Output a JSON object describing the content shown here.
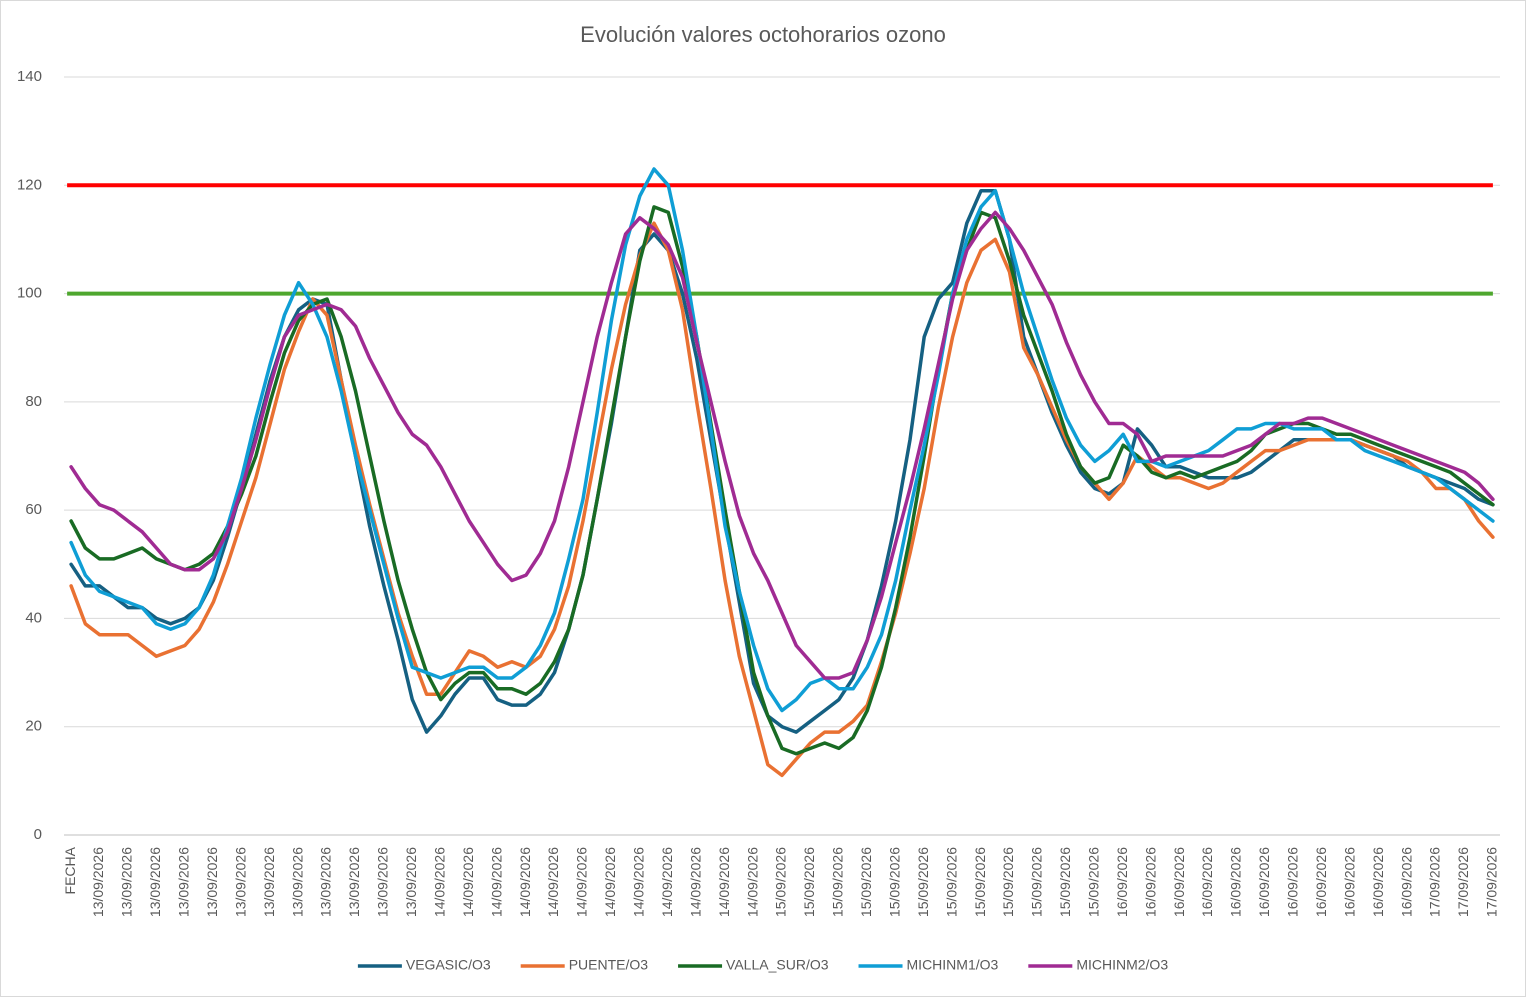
{
  "chart_data": {
    "type": "line",
    "title": "Evolución valores octohorarios ozono",
    "categories": [
      "FECHA",
      null,
      "13/09/2026",
      null,
      "13/09/2026",
      null,
      "13/09/2026",
      null,
      "13/09/2026",
      null,
      "13/09/2026",
      null,
      "13/09/2026",
      null,
      "13/09/2026",
      null,
      "13/09/2026",
      null,
      "13/09/2026",
      null,
      "13/09/2026",
      null,
      "13/09/2026",
      null,
      "13/09/2026",
      null,
      "14/09/2026",
      null,
      "14/09/2026",
      null,
      "14/09/2026",
      null,
      "14/09/2026",
      null,
      "14/09/2026",
      null,
      "14/09/2026",
      null,
      "14/09/2026",
      null,
      "14/09/2026",
      null,
      "14/09/2026",
      null,
      "14/09/2026",
      null,
      "14/09/2026",
      null,
      "14/09/2026",
      null,
      "15/09/2026",
      null,
      "15/09/2026",
      null,
      "15/09/2026",
      null,
      "15/09/2026",
      null,
      "15/09/2026",
      null,
      "15/09/2026",
      null,
      "15/09/2026",
      null,
      "15/09/2026",
      null,
      "15/09/2026",
      null,
      "15/09/2026",
      null,
      "15/09/2026",
      null,
      "15/09/2026",
      null,
      "16/09/2026",
      null,
      "16/09/2026",
      null,
      "16/09/2026",
      null,
      "16/09/2026",
      null,
      "16/09/2026",
      null,
      "16/09/2026",
      null,
      "16/09/2026",
      null,
      "16/09/2026",
      null,
      "16/09/2026",
      null,
      "16/09/2026",
      null,
      "16/09/2026",
      null,
      "17/09/2026",
      null,
      "17/09/2026",
      null,
      "17/09/2026"
    ],
    "series": [
      {
        "name": "VEGASIC/O3",
        "color": "#156082",
        "values": [
          50,
          46,
          46,
          44,
          42,
          42,
          40,
          39,
          40,
          42,
          47,
          55,
          64,
          74,
          84,
          92,
          97,
          99,
          98,
          84,
          70,
          57,
          46,
          36,
          25,
          19,
          22,
          26,
          29,
          29,
          25,
          24,
          24,
          26,
          30,
          38,
          48,
          62,
          76,
          92,
          108,
          111,
          108,
          100,
          88,
          73,
          58,
          43,
          28,
          22,
          20,
          19,
          21,
          23,
          25,
          29,
          36,
          46,
          58,
          73,
          92,
          99,
          102,
          113,
          119,
          119,
          110,
          92,
          85,
          78,
          72,
          67,
          64,
          63,
          65,
          75,
          72,
          68,
          68,
          67,
          66,
          66,
          66,
          67,
          69,
          71,
          73,
          73,
          73,
          73,
          73,
          72,
          71,
          70,
          68,
          67,
          66,
          65,
          64,
          62,
          61
        ]
      },
      {
        "name": "PUENTE/O3",
        "color": "#e97132",
        "values": [
          46,
          39,
          37,
          37,
          37,
          35,
          33,
          34,
          35,
          38,
          43,
          50,
          58,
          66,
          76,
          86,
          93,
          99,
          96,
          84,
          72,
          61,
          51,
          41,
          33,
          26,
          26,
          30,
          34,
          33,
          31,
          32,
          31,
          33,
          38,
          46,
          58,
          72,
          86,
          98,
          107,
          113,
          108,
          97,
          80,
          64,
          47,
          33,
          23,
          13,
          11,
          14,
          17,
          19,
          19,
          21,
          24,
          32,
          41,
          52,
          64,
          79,
          92,
          102,
          108,
          110,
          104,
          90,
          85,
          79,
          73,
          68,
          65,
          62,
          65,
          70,
          68,
          66,
          66,
          65,
          64,
          65,
          67,
          69,
          71,
          71,
          72,
          73,
          73,
          73,
          73,
          72,
          71,
          70,
          69,
          67,
          64,
          64,
          62,
          58,
          55
        ]
      },
      {
        "name": "VALLA_SUR/O3",
        "color": "#196b24",
        "values": [
          58,
          53,
          51,
          51,
          52,
          53,
          51,
          50,
          49,
          50,
          52,
          57,
          63,
          70,
          80,
          89,
          95,
          98,
          99,
          92,
          82,
          70,
          58,
          47,
          38,
          30,
          25,
          28,
          30,
          30,
          27,
          27,
          26,
          28,
          32,
          38,
          48,
          62,
          77,
          92,
          106,
          116,
          115,
          105,
          92,
          76,
          60,
          45,
          30,
          22,
          16,
          15,
          16,
          17,
          16,
          18,
          23,
          31,
          42,
          55,
          70,
          86,
          100,
          108,
          115,
          114,
          106,
          96,
          89,
          82,
          74,
          68,
          65,
          66,
          72,
          70,
          67,
          66,
          67,
          66,
          67,
          68,
          69,
          71,
          74,
          75,
          76,
          76,
          75,
          74,
          74,
          73,
          72,
          71,
          70,
          69,
          68,
          67,
          65,
          63,
          61
        ]
      },
      {
        "name": "MICHINM1/O3",
        "color": "#0f9ed5",
        "values": [
          54,
          48,
          45,
          44,
          43,
          42,
          39,
          38,
          39,
          42,
          48,
          57,
          66,
          77,
          87,
          96,
          102,
          98,
          92,
          82,
          70,
          60,
          50,
          40,
          31,
          30,
          29,
          30,
          31,
          31,
          29,
          29,
          31,
          35,
          41,
          51,
          62,
          78,
          95,
          109,
          118,
          123,
          120,
          108,
          92,
          75,
          57,
          45,
          35,
          27,
          23,
          25,
          28,
          29,
          27,
          27,
          31,
          37,
          47,
          60,
          72,
          85,
          100,
          110,
          116,
          119,
          110,
          100,
          92,
          84,
          77,
          72,
          69,
          71,
          74,
          69,
          69,
          68,
          69,
          70,
          71,
          73,
          75,
          75,
          76,
          76,
          75,
          75,
          75,
          73,
          73,
          71,
          70,
          69,
          68,
          67,
          66,
          64,
          62,
          60,
          58
        ]
      },
      {
        "name": "MICHINM2/O3",
        "color": "#a02b93",
        "values": [
          68,
          64,
          61,
          60,
          58,
          56,
          53,
          50,
          49,
          49,
          51,
          56,
          64,
          73,
          83,
          92,
          96,
          97,
          98,
          97,
          94,
          88,
          83,
          78,
          74,
          72,
          68,
          63,
          58,
          54,
          50,
          47,
          48,
          52,
          58,
          68,
          80,
          92,
          102,
          111,
          114,
          112,
          109,
          103,
          91,
          80,
          69,
          59,
          52,
          47,
          41,
          35,
          32,
          29,
          29,
          30,
          36,
          44,
          54,
          64,
          75,
          87,
          99,
          108,
          112,
          115,
          112,
          108,
          103,
          98,
          91,
          85,
          80,
          76,
          76,
          74,
          69,
          70,
          70,
          70,
          70,
          70,
          71,
          72,
          74,
          76,
          76,
          77,
          77,
          76,
          75,
          74,
          73,
          72,
          71,
          70,
          69,
          68,
          67,
          65,
          62
        ]
      }
    ],
    "reference_lines": [
      {
        "value": 120,
        "color": "#ff0000"
      },
      {
        "value": 100,
        "color": "#4ea72e"
      }
    ],
    "ylim": [
      0,
      140
    ],
    "yticks": [
      0,
      20,
      40,
      60,
      80,
      100,
      120,
      140
    ],
    "grid": true,
    "legend": "bottom"
  }
}
